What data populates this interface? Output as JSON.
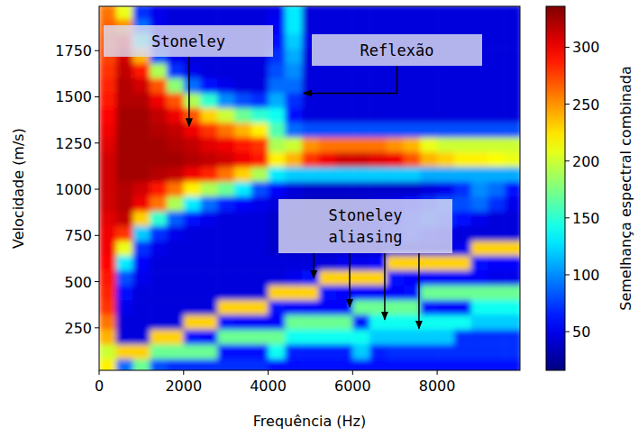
{
  "chart_data": {
    "type": "heatmap",
    "color": "jet",
    "x_label": "Frequência (Hz)",
    "y_label": "Velocidade (m/s)",
    "xlim": [
      0,
      9960
    ],
    "ylim": [
      20,
      1990
    ],
    "xticks": [
      0,
      2000,
      4000,
      6000,
      8000
    ],
    "yticks": [
      250,
      500,
      750,
      1000,
      1250,
      1500,
      1750
    ],
    "x": [
      200,
      600,
      1000,
      1400,
      1800,
      2200,
      2600,
      3000,
      3400,
      3800,
      4200,
      4600,
      5000,
      5400,
      5800,
      6200,
      6600,
      7000,
      7400,
      7800,
      8200,
      8600,
      9000,
      9400,
      9800
    ],
    "y": [
      1960,
      1880,
      1800,
      1720,
      1640,
      1560,
      1480,
      1400,
      1320,
      1240,
      1160,
      1080,
      1000,
      920,
      840,
      760,
      680,
      600,
      520,
      440,
      360,
      280,
      200,
      120,
      40
    ],
    "z": [
      [
        260,
        210,
        70,
        50,
        45,
        45,
        45,
        45,
        45,
        45,
        50,
        130,
        45,
        45,
        45,
        45,
        45,
        45,
        45,
        45,
        45,
        45,
        45,
        45,
        45
      ],
      [
        265,
        250,
        90,
        50,
        45,
        45,
        45,
        45,
        45,
        45,
        55,
        130,
        45,
        45,
        45,
        45,
        45,
        45,
        45,
        45,
        45,
        45,
        45,
        45,
        45
      ],
      [
        270,
        290,
        150,
        55,
        45,
        45,
        45,
        45,
        45,
        45,
        60,
        120,
        50,
        45,
        45,
        45,
        45,
        45,
        45,
        45,
        45,
        45,
        45,
        45,
        45
      ],
      [
        275,
        310,
        240,
        80,
        50,
        45,
        45,
        45,
        45,
        45,
        70,
        110,
        45,
        45,
        45,
        45,
        45,
        45,
        45,
        45,
        45,
        45,
        45,
        45,
        45
      ],
      [
        280,
        315,
        290,
        190,
        70,
        50,
        45,
        45,
        45,
        45,
        80,
        100,
        45,
        45,
        45,
        45,
        45,
        45,
        45,
        45,
        45,
        45,
        45,
        45,
        45
      ],
      [
        285,
        320,
        310,
        270,
        180,
        90,
        60,
        50,
        45,
        45,
        90,
        90,
        45,
        45,
        45,
        45,
        45,
        45,
        45,
        45,
        45,
        45,
        45,
        45,
        45
      ],
      [
        290,
        320,
        320,
        300,
        270,
        190,
        150,
        100,
        80,
        70,
        110,
        70,
        45,
        45,
        45,
        45,
        45,
        45,
        45,
        45,
        45,
        45,
        45,
        45,
        45
      ],
      [
        295,
        325,
        325,
        315,
        300,
        270,
        230,
        200,
        170,
        150,
        140,
        60,
        45,
        45,
        45,
        45,
        45,
        45,
        45,
        45,
        45,
        45,
        45,
        45,
        45
      ],
      [
        300,
        325,
        325,
        320,
        315,
        300,
        280,
        260,
        240,
        220,
        160,
        90,
        80,
        80,
        80,
        80,
        80,
        80,
        80,
        80,
        80,
        80,
        80,
        80,
        80
      ],
      [
        305,
        325,
        325,
        325,
        320,
        315,
        305,
        300,
        290,
        280,
        190,
        200,
        250,
        260,
        260,
        260,
        260,
        250,
        240,
        210,
        200,
        200,
        200,
        200,
        200
      ],
      [
        310,
        325,
        325,
        325,
        325,
        320,
        315,
        310,
        300,
        290,
        220,
        240,
        280,
        300,
        310,
        310,
        305,
        300,
        270,
        240,
        230,
        220,
        220,
        215,
        210
      ],
      [
        310,
        325,
        325,
        320,
        315,
        300,
        285,
        260,
        230,
        190,
        130,
        120,
        120,
        120,
        120,
        120,
        120,
        120,
        120,
        110,
        110,
        110,
        110,
        110,
        110
      ],
      [
        310,
        320,
        310,
        290,
        260,
        220,
        190,
        170,
        130,
        80,
        55,
        45,
        40,
        40,
        40,
        40,
        40,
        40,
        40,
        45,
        50,
        70,
        100,
        90,
        60
      ],
      [
        310,
        320,
        300,
        260,
        190,
        130,
        90,
        65,
        55,
        50,
        45,
        40,
        35,
        35,
        35,
        40,
        45,
        50,
        60,
        70,
        80,
        80,
        90,
        70,
        50
      ],
      [
        305,
        315,
        230,
        150,
        85,
        60,
        50,
        45,
        45,
        45,
        40,
        35,
        35,
        35,
        35,
        40,
        45,
        55,
        70,
        80,
        70,
        60,
        50,
        45,
        45
      ],
      [
        300,
        280,
        120,
        70,
        50,
        45,
        45,
        45,
        45,
        45,
        40,
        35,
        35,
        35,
        40,
        45,
        50,
        60,
        70,
        60,
        50,
        45,
        45,
        45,
        45
      ],
      [
        300,
        210,
        70,
        50,
        45,
        45,
        45,
        45,
        45,
        45,
        40,
        40,
        40,
        40,
        40,
        40,
        40,
        45,
        45,
        45,
        45,
        50,
        230,
        230,
        230
      ],
      [
        295,
        130,
        55,
        45,
        45,
        45,
        45,
        45,
        45,
        45,
        45,
        45,
        45,
        45,
        50,
        50,
        55,
        230,
        230,
        230,
        230,
        230,
        60,
        55,
        55
      ],
      [
        290,
        80,
        50,
        45,
        45,
        45,
        45,
        45,
        45,
        45,
        45,
        50,
        60,
        230,
        230,
        230,
        230,
        60,
        55,
        55,
        55,
        55,
        55,
        50,
        50
      ],
      [
        285,
        60,
        45,
        45,
        45,
        45,
        45,
        45,
        45,
        45,
        230,
        230,
        230,
        60,
        55,
        55,
        55,
        55,
        60,
        170,
        170,
        170,
        170,
        170,
        170
      ],
      [
        280,
        50,
        45,
        45,
        45,
        45,
        45,
        230,
        230,
        230,
        60,
        55,
        55,
        55,
        55,
        170,
        170,
        170,
        170,
        60,
        55,
        55,
        140,
        140,
        140
      ],
      [
        260,
        45,
        45,
        45,
        45,
        230,
        230,
        60,
        55,
        55,
        55,
        170,
        170,
        170,
        170,
        60,
        140,
        140,
        140,
        140,
        140,
        140,
        120,
        120,
        120
      ],
      [
        240,
        45,
        45,
        230,
        230,
        60,
        55,
        170,
        170,
        170,
        170,
        140,
        140,
        140,
        140,
        140,
        120,
        120,
        120,
        120,
        120,
        70,
        70,
        70,
        70
      ],
      [
        200,
        230,
        230,
        170,
        170,
        170,
        170,
        60,
        60,
        60,
        140,
        65,
        65,
        65,
        65,
        120,
        65,
        70,
        70,
        70,
        70,
        70,
        70,
        70,
        70
      ],
      [
        220,
        90,
        170,
        80,
        70,
        70,
        70,
        70,
        70,
        70,
        60,
        60,
        60,
        60,
        60,
        60,
        60,
        60,
        60,
        60,
        60,
        60,
        60,
        60,
        60
      ]
    ],
    "colorbar": {
      "label": "Semelhança espectral combinada",
      "range": [
        16,
        336
      ],
      "ticks": [
        50,
        100,
        150,
        200,
        250,
        300
      ]
    },
    "annotations": [
      {
        "text": "Stoneley",
        "arrows": [
          [
            2130,
            1340
          ]
        ]
      },
      {
        "text": "Reflexão",
        "arrows": [
          [
            4840,
            1520
          ]
        ]
      },
      {
        "text": "Stoneley aliasing",
        "arrows": [
          [
            5080,
            518
          ],
          [
            5930,
            362
          ],
          [
            6760,
            294
          ],
          [
            7570,
            245
          ]
        ]
      }
    ]
  }
}
